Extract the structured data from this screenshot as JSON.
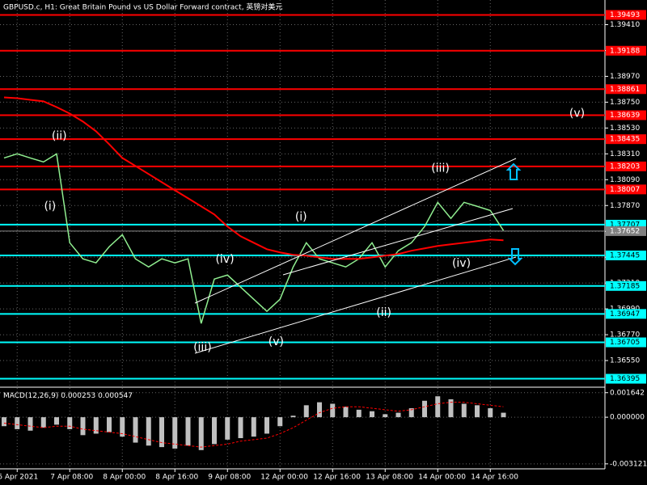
{
  "chart_data": [
    {
      "type": "line",
      "title": "GBPUSD.c, H1:  Great Britain Pound vs US Dollar Forward contract, 英镑对美元",
      "categories": [
        null,
        "6 Apr 2021",
        null,
        null,
        null,
        "7 Apr 08:00",
        null,
        null,
        null,
        "8 Apr 00:00",
        null,
        null,
        null,
        "8 Apr 16:00",
        null,
        null,
        null,
        "9 Apr 08:00",
        null,
        null,
        null,
        "12 Apr 00:00",
        null,
        null,
        null,
        "12 Apr 16:00",
        null,
        null,
        null,
        "13 Apr 08:00",
        null,
        null,
        null,
        "14 Apr 00:00",
        null,
        null,
        null,
        "14 Apr 16:00",
        null
      ],
      "series": [
        {
          "color": "#90ee90",
          "values": [
            1.38275,
            1.3831,
            1.38275,
            1.38241,
            1.3831,
            1.37553,
            1.37416,
            1.37382,
            1.37519,
            1.37622,
            1.37416,
            1.37347,
            1.37416,
            1.37382,
            1.37416,
            1.36866,
            1.37244,
            1.37278,
            1.37175,
            1.37072,
            1.36969,
            1.37072,
            1.37347,
            1.37553,
            1.37416,
            1.37382,
            1.37347,
            1.37416,
            1.37553,
            1.37347,
            1.37485,
            1.37553,
            1.37691,
            1.37897,
            1.3776,
            1.37897,
            1.37863,
            1.37828,
            1.37657
          ]
        },
        {
          "color": "#ff0000",
          "values": [
            1.38791,
            1.38784,
            1.3877,
            1.38757,
            1.38708,
            1.38653,
            1.38585,
            1.38502,
            1.38392,
            1.38275,
            1.38207,
            1.38138,
            1.38069,
            1.38,
            1.37932,
            1.37863,
            1.37794,
            1.37691,
            1.37608,
            1.37553,
            1.37498,
            1.37471,
            1.3745,
            1.37443,
            1.37429,
            1.37416,
            1.37416,
            1.37416,
            1.37429,
            1.37443,
            1.37457,
            1.37485,
            1.37505,
            1.37526,
            1.3754,
            1.37553,
            1.37567,
            1.37581,
            1.37574
          ]
        }
      ],
      "ylim": [
        1.3633,
        1.3962
      ],
      "yticks": [
        {
          "value": 1.3941,
          "label": "1.39410"
        },
        {
          "value": 1.3919,
          "label": "1.39190"
        },
        {
          "value": 1.3897,
          "label": "1.38970"
        },
        {
          "value": 1.3875,
          "label": "1.38750"
        },
        {
          "value": 1.3853,
          "label": "1.38530"
        },
        {
          "value": 1.3831,
          "label": "1.38310"
        },
        {
          "value": 1.3809,
          "label": "1.38090"
        },
        {
          "value": 1.3787,
          "label": "1.37870"
        },
        {
          "value": 1.3765,
          "label": "1.37650"
        },
        {
          "value": 1.3743,
          "label": "1.37430"
        },
        {
          "value": 1.3721,
          "label": "1.37210"
        },
        {
          "value": 1.3699,
          "label": "1.36990"
        },
        {
          "value": 1.3677,
          "label": "1.36770"
        },
        {
          "value": 1.3655,
          "label": "1.36550"
        }
      ],
      "grid": true,
      "levels": [
        {
          "value": 1.39493,
          "color": "#ff0000"
        },
        {
          "value": 1.39188,
          "color": "#ff0000"
        },
        {
          "value": 1.38861,
          "color": "#ff0000"
        },
        {
          "value": 1.38639,
          "color": "#ff0000"
        },
        {
          "value": 1.38435,
          "color": "#ff0000"
        },
        {
          "value": 1.38203,
          "color": "#ff0000"
        },
        {
          "value": 1.38007,
          "color": "#ff0000"
        },
        {
          "value": 1.37707,
          "color": "#00ffff"
        },
        {
          "value": 1.37445,
          "color": "#00ffff"
        },
        {
          "value": 1.37185,
          "color": "#00ffff"
        },
        {
          "value": 1.36947,
          "color": "#00ffff"
        },
        {
          "value": 1.36705,
          "color": "#00ffff"
        },
        {
          "value": 1.36395,
          "color": "#00ffff"
        }
      ],
      "current_price": 1.37652,
      "annotations": [
        {
          "text": "(ii)",
          "index": 4.2,
          "price": 1.38461
        },
        {
          "text": "(i)",
          "index": 3.5,
          "price": 1.37863
        },
        {
          "text": "(iii)",
          "index": 33.2,
          "price": 1.38186
        },
        {
          "text": "(v)",
          "index": 43.6,
          "price": 1.38654
        },
        {
          "text": "(i)",
          "index": 22.6,
          "price": 1.37773
        },
        {
          "text": "(iv)",
          "index": 16.8,
          "price": 1.37409
        },
        {
          "text": "(iii)",
          "index": 15.1,
          "price": 1.3666
        },
        {
          "text": "(v)",
          "index": 20.7,
          "price": 1.36708
        },
        {
          "text": "(ii)",
          "index": 28.9,
          "price": 1.36955
        },
        {
          "text": "(iv)",
          "index": 34.8,
          "price": 1.37375
        }
      ]
    },
    {
      "type": "bar",
      "title": "MACD(12,26,9)",
      "main_value": 0.000253,
      "signal_value": 0.000547,
      "values": [
        -0.0006,
        -0.0008,
        -0.0009,
        -0.0007,
        -0.0005,
        -0.0008,
        -0.0012,
        -0.0011,
        -0.001,
        -0.0013,
        -0.0017,
        -0.0019,
        -0.002,
        -0.0021,
        -0.0019,
        -0.0022,
        -0.0018,
        -0.0015,
        -0.0014,
        -0.0013,
        -0.0011,
        -0.0006,
        0.0001,
        0.0008,
        0.001,
        0.0009,
        0.0007,
        0.0005,
        0.0004,
        0.0002,
        0.0003,
        0.0006,
        0.0011,
        0.0014,
        0.0012,
        0.0009,
        0.0008,
        0.0006,
        0.0003
      ],
      "color": "#c0c0c0",
      "series": [
        {
          "color": "#ff0000",
          "values": [
            -0.0004,
            -0.0005,
            -0.0006,
            -0.0007,
            -0.0006,
            -0.0006,
            -0.0008,
            -0.0009,
            -0.001,
            -0.0011,
            -0.0013,
            -0.0015,
            -0.0017,
            -0.0018,
            -0.0019,
            -0.002,
            -0.0019,
            -0.0018,
            -0.0016,
            -0.0015,
            -0.0014,
            -0.0011,
            -0.0007,
            -0.0002,
            0.0003,
            0.0006,
            0.0007,
            0.0007,
            0.0006,
            0.0005,
            0.0004,
            0.0005,
            0.0007,
            0.0009,
            0.001,
            0.001,
            0.0009,
            0.0008,
            0.0007
          ]
        }
      ],
      "ylim": [
        -0.0034,
        0.0019
      ],
      "yticks": [
        0.001642,
        {
          "value": 0,
          "label": "0.000000"
        },
        -0.003121
      ]
    }
  ]
}
